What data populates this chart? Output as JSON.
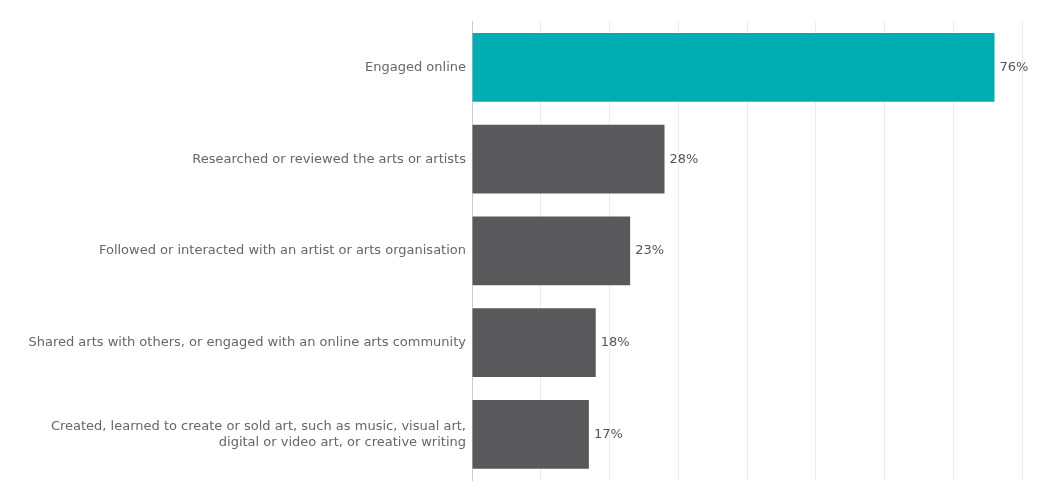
{
  "chart_data": {
    "type": "bar",
    "orientation": "horizontal",
    "categories": [
      "Engaged online",
      "Researched or reviewed the arts or artists",
      "Followed or interacted with an artist or arts organisation",
      "Shared arts with others, or engaged with an online arts community",
      "Created, learned to create or sold art, such as music, visual art, digital or video art, or creative writing"
    ],
    "values": [
      76,
      28,
      23,
      18,
      17
    ],
    "colors": [
      "#00adb0",
      "#59595b",
      "#59595b",
      "#59595b",
      "#59595b"
    ],
    "value_labels": [
      "76%",
      "28%",
      "23%",
      "18%",
      "17%"
    ],
    "xlim": [
      0,
      80
    ],
    "xticks": [
      {
        "value": 0,
        "label": null
      },
      {
        "value": 10,
        "label": null
      },
      {
        "value": 20,
        "label": null
      },
      {
        "value": 30,
        "label": null
      },
      {
        "value": 40,
        "label": null
      },
      {
        "value": 50,
        "label": null
      },
      {
        "value": 60,
        "label": null
      },
      {
        "value": 70,
        "label": null
      },
      {
        "value": 80,
        "label": null
      }
    ],
    "grid": "x",
    "tick_labels": "y",
    "legend": false
  }
}
